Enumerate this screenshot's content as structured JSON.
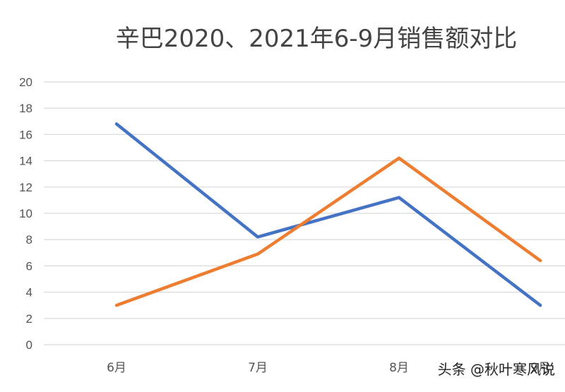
{
  "chart_data": {
    "type": "line",
    "title": "辛巴2020、2021年6-9月销售额对比",
    "xlabel": "",
    "ylabel": "",
    "categories": [
      "6月",
      "7月",
      "8月",
      "9月"
    ],
    "ylim": [
      0,
      20
    ],
    "yticks": [
      0,
      2,
      4,
      6,
      8,
      10,
      12,
      14,
      16,
      18,
      20
    ],
    "grid": true,
    "legend": "none",
    "series": [
      {
        "values": [
          16.8,
          8.2,
          11.2,
          3.0
        ],
        "color": "#4472c4"
      },
      {
        "values": [
          3.0,
          6.9,
          14.2,
          6.4
        ],
        "color": "#ed7d31"
      }
    ]
  },
  "watermark": "头条 @秋叶寒风说"
}
